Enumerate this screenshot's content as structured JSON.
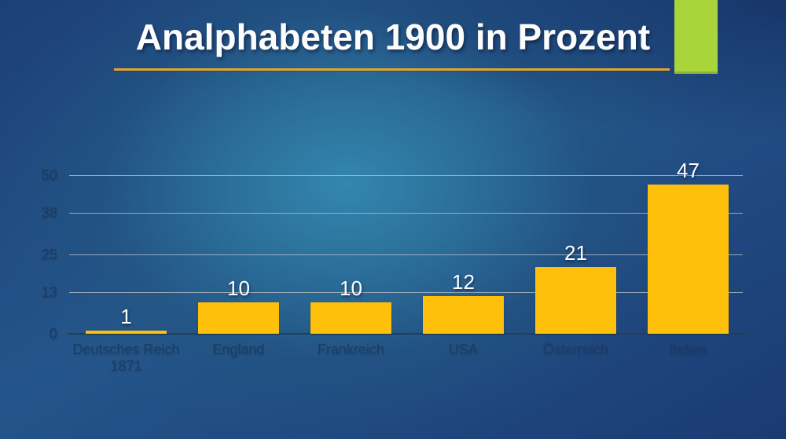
{
  "slide": {
    "title": "Analphabeten 1900 in Prozent",
    "title_color": "#fdfdfd",
    "underline_color": "#e2a52e",
    "accent_rect_color": "#a9d43a",
    "background_center_color": "#2f81a8",
    "background_edge_color": "#1b3a74"
  },
  "chart_data": {
    "type": "bar",
    "title": "Analphabeten 1900 in Prozent",
    "categories": [
      "Deutsches Reich 1871",
      "England",
      "Frankreich",
      "USA",
      "Österreich",
      "Italien"
    ],
    "values": [
      1,
      10,
      10,
      12,
      21,
      47
    ],
    "value_labels": [
      "1",
      "10",
      "10",
      "12",
      "21",
      "47"
    ],
    "y_ticks": [
      0,
      13,
      25,
      38,
      50
    ],
    "ylim": [
      0,
      50
    ],
    "xlabel": "",
    "ylabel": "",
    "grid": true,
    "legend": "none",
    "bar_color": "#fec00b",
    "value_label_color": "#ffffff",
    "tick_label_color": "#1d3c63",
    "category_label_color": "#1d3c63",
    "gridline_color": "#aeb9c0",
    "axis_line_color": "#23404f"
  }
}
